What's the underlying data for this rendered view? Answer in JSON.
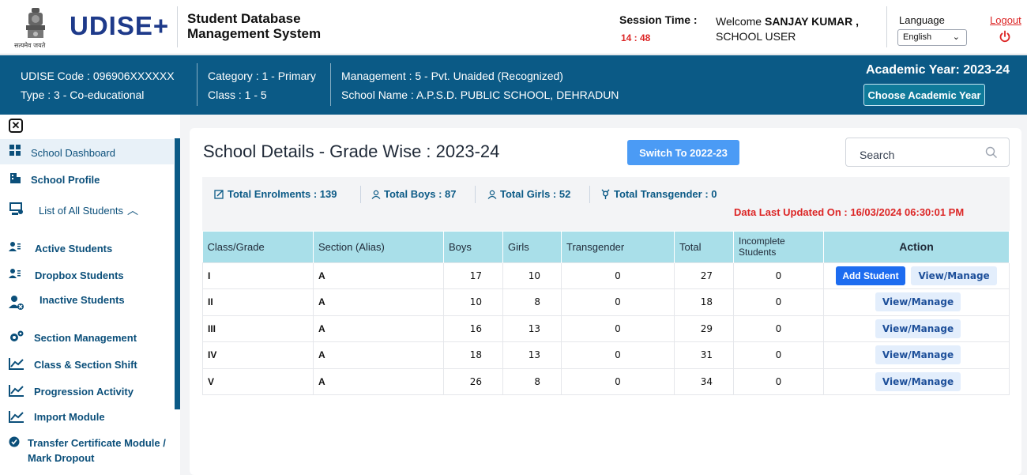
{
  "header": {
    "emblem_caption": "सत्यमेव जयते",
    "brand": "UDISE+",
    "system_name": "Student Database Management System",
    "session_label": "Session Time :",
    "session_time": "14 : 48",
    "welcome_prefix": "Welcome",
    "user_name": "SANJAY KUMAR ,",
    "user_role": "SCHOOL USER",
    "language_label": "Language",
    "language_value": "English",
    "logout_label": "Logout"
  },
  "school": {
    "udise_code": "UDISE Code : 096906XXXXXX",
    "type": "Type : 3 - Co-educational",
    "category": "Category : 1 - Primary",
    "class_range": "Class : 1 - 5",
    "management": "Management : 5 - Pvt. Unaided (Recognized)",
    "school_name": "School Name : A.P.S.D. PUBLIC SCHOOL, DEHRADUN",
    "academic_year": "Academic Year: 2023-24",
    "choose_ay_label": "Choose Academic Year"
  },
  "sidebar": {
    "items": [
      {
        "label": "School Dashboard",
        "icon": "dashboard-icon"
      },
      {
        "label": "School Profile",
        "icon": "building-icon"
      },
      {
        "label": "List of All Students",
        "icon": "students-list-icon"
      },
      {
        "label": "Active Students",
        "icon": "user-list-icon"
      },
      {
        "label": "Dropbox Students",
        "icon": "user-list-icon"
      },
      {
        "label": "Inactive Students",
        "icon": "user-blocked-icon"
      },
      {
        "label": "Section Management",
        "icon": "gears-icon"
      },
      {
        "label": "Class & Section Shift",
        "icon": "chart-line-icon"
      },
      {
        "label": "Progression Activity",
        "icon": "chart-line-icon"
      },
      {
        "label": "Import Module",
        "icon": "chart-line-icon"
      },
      {
        "label": "Transfer Certificate Module /",
        "label2": "Mark Dropout",
        "icon": "badge-check-icon"
      }
    ]
  },
  "main": {
    "title": "School Details - Grade Wise : 2023-24",
    "switch_label": "Switch To 2022-23",
    "search_placeholder": "Search",
    "stats": {
      "enrolments": "Total Enrolments : 139",
      "boys": "Total Boys : 87",
      "girls": "Total Girls : 52",
      "transgender": "Total Transgender : 0"
    },
    "updated": "Data Last Updated On : 16/03/2024 06:30:01 PM",
    "columns": [
      "Class/Grade",
      "Section (Alias)",
      "Boys",
      "Girls",
      "Transgender",
      "Total",
      "Incomplete Students",
      "Action"
    ],
    "add_student_label": "Add Student",
    "view_manage_label": "View/Manage",
    "rows": [
      {
        "grade": "I",
        "section": "A",
        "boys": "17",
        "girls": "10",
        "transgender": "0",
        "total": "27",
        "incomplete": "0"
      },
      {
        "grade": "II",
        "section": "A",
        "boys": "10",
        "girls": "8",
        "transgender": "0",
        "total": "18",
        "incomplete": "0"
      },
      {
        "grade": "III",
        "section": "A",
        "boys": "16",
        "girls": "13",
        "transgender": "0",
        "total": "29",
        "incomplete": "0"
      },
      {
        "grade": "IV",
        "section": "A",
        "boys": "18",
        "girls": "13",
        "transgender": "0",
        "total": "31",
        "incomplete": "0"
      },
      {
        "grade": "V",
        "section": "A",
        "boys": "26",
        "girls": "8",
        "transgender": "0",
        "total": "34",
        "incomplete": "0"
      }
    ]
  },
  "colors": {
    "infobar": "#0b5a86",
    "accent_red": "#dc2626",
    "table_header": "#a9dfe9"
  }
}
